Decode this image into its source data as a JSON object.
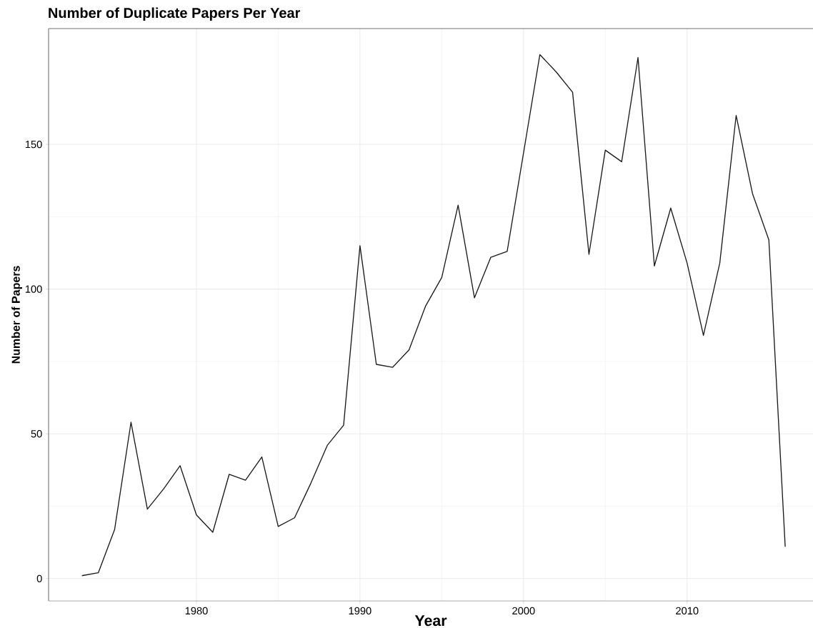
{
  "chart_data": {
    "type": "line",
    "title": "Number of Duplicate Papers Per Year",
    "xlabel": "Year",
    "ylabel": "Number of Papers",
    "x": [
      1973,
      1974,
      1975,
      1976,
      1977,
      1978,
      1979,
      1980,
      1981,
      1982,
      1983,
      1984,
      1985,
      1986,
      1987,
      1988,
      1989,
      1990,
      1991,
      1992,
      1993,
      1994,
      1995,
      1996,
      1997,
      1998,
      1999,
      2000,
      2001,
      2002,
      2003,
      2004,
      2005,
      2006,
      2007,
      2008,
      2009,
      2010,
      2011,
      2012,
      2013,
      2014,
      2015,
      2016
    ],
    "series": [
      {
        "color": "#1a1a1a",
        "values": [
          1,
          2,
          17,
          54,
          24,
          31,
          39,
          22,
          16,
          36,
          34,
          42,
          18,
          21,
          33,
          46,
          53,
          115,
          74,
          73,
          79,
          94,
          104,
          129,
          97,
          111,
          113,
          147,
          181,
          175,
          168,
          112,
          148,
          144,
          180,
          108,
          128,
          109,
          84,
          109,
          160,
          133,
          117,
          11
        ]
      }
    ],
    "xlim": [
      1970.96,
      2017.7
    ],
    "ylim": [
      -7.7,
      190
    ],
    "xticks": [
      1980,
      1990,
      2000,
      2010
    ],
    "yticks": [
      0,
      50,
      100,
      150
    ],
    "grid": true,
    "marker": "none",
    "line_style": "solid"
  }
}
